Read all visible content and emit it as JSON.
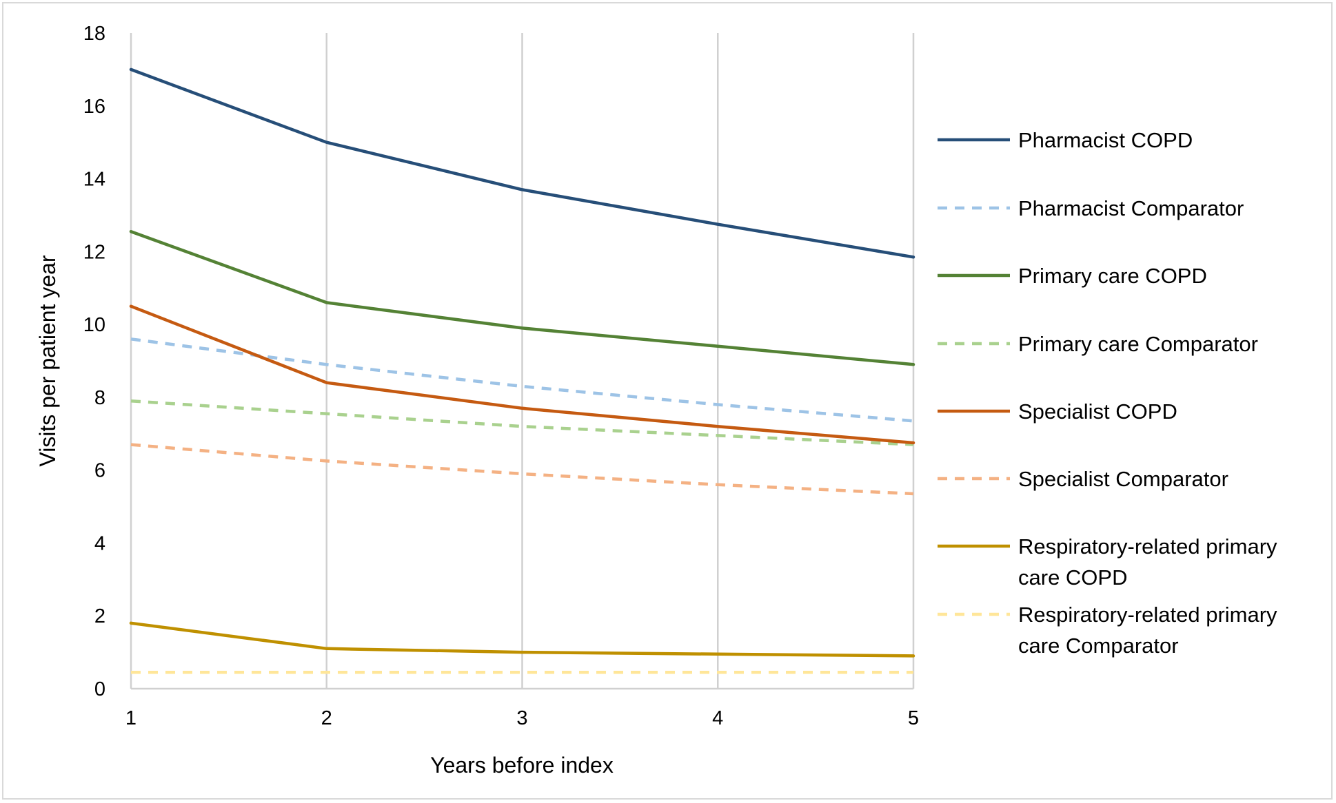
{
  "chart_data": {
    "type": "line",
    "title": "",
    "xlabel": "Years before index",
    "ylabel": "Visits per patient year",
    "x": [
      1,
      2,
      3,
      4,
      5
    ],
    "x_tick_labels": [
      "1",
      "2",
      "3",
      "4",
      "5"
    ],
    "ylim": [
      0,
      18
    ],
    "y_ticks": [
      0,
      2,
      4,
      6,
      8,
      10,
      12,
      14,
      16,
      18
    ],
    "grid": "vertical",
    "legend_position": "right",
    "series": [
      {
        "name": "Pharmacist COPD",
        "values": [
          17.0,
          15.0,
          13.7,
          12.75,
          11.85
        ],
        "color": "#264e78",
        "dash": false
      },
      {
        "name": "Pharmacist Comparator",
        "values": [
          9.6,
          8.9,
          8.3,
          7.8,
          7.35
        ],
        "color": "#9dc3e6",
        "dash": true
      },
      {
        "name": "Primary care COPD",
        "values": [
          12.55,
          10.6,
          9.9,
          9.4,
          8.9
        ],
        "color": "#548235",
        "dash": false
      },
      {
        "name": "Primary care Comparator",
        "values": [
          7.9,
          7.55,
          7.2,
          6.95,
          6.7
        ],
        "color": "#a9d18e",
        "dash": true
      },
      {
        "name": "Specialist COPD",
        "values": [
          10.5,
          8.4,
          7.7,
          7.2,
          6.75
        ],
        "color": "#c55a11",
        "dash": false
      },
      {
        "name": "Specialist Comparator",
        "values": [
          6.7,
          6.25,
          5.9,
          5.6,
          5.35
        ],
        "color": "#f4b183",
        "dash": true
      },
      {
        "name": "Respiratory-related primary care COPD",
        "legend_lines": [
          "Respiratory-related primary",
          "care COPD"
        ],
        "values": [
          1.8,
          1.1,
          1.0,
          0.95,
          0.9
        ],
        "color": "#bf9000",
        "dash": false
      },
      {
        "name": "Respiratory-related primary care Comparator",
        "legend_lines": [
          "Respiratory-related primary",
          "care Comparator"
        ],
        "values": [
          0.45,
          0.45,
          0.45,
          0.45,
          0.45
        ],
        "color": "#ffe699",
        "dash": true
      }
    ]
  }
}
